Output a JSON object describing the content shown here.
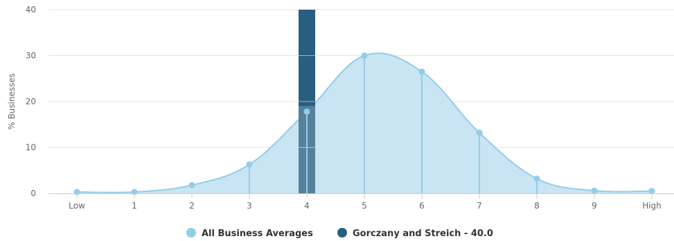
{
  "chart_data": {
    "type": "area",
    "ylabel": "% Businesses",
    "xlabel": "",
    "categories": [
      "Low",
      "1",
      "2",
      "3",
      "4",
      "5",
      "6",
      "7",
      "8",
      "9",
      "High"
    ],
    "ylim": [
      0,
      40
    ],
    "yticks": [
      0,
      10,
      20,
      30,
      40
    ],
    "grid": true,
    "legend_position": "bottom-center",
    "series": [
      {
        "name": "All Business Averages",
        "type": "area",
        "color": "#92cdea",
        "fill_color": "#c9e4f3",
        "values": [
          0.3,
          0.3,
          1.8,
          6.3,
          17.8,
          30.0,
          26.5,
          13.2,
          3.2,
          0.6,
          0.5
        ]
      },
      {
        "name": "Gorczany and Streich - 40.0",
        "type": "bar",
        "color": "#285e7f",
        "category": "4",
        "value": 40.0
      }
    ]
  }
}
